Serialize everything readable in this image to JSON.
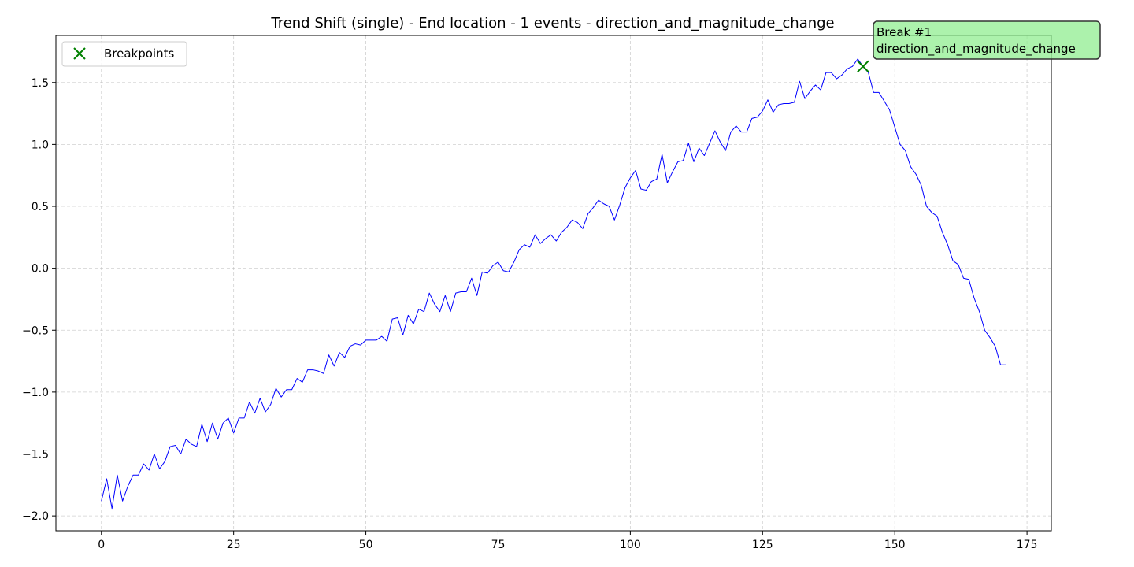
{
  "chart_data": {
    "type": "line",
    "title": "Trend Shift (single) - End location - 1 events - direction_and_magnitude_change",
    "xlabel": "",
    "ylabel": "",
    "xlim": [
      -8.6,
      179.6
    ],
    "ylim": [
      -2.12,
      1.88
    ],
    "xticks": [
      0,
      25,
      50,
      75,
      100,
      125,
      150,
      175
    ],
    "yticks": [
      -2.0,
      -1.5,
      -1.0,
      -0.5,
      0.0,
      0.5,
      1.0,
      1.5
    ],
    "ytick_labels": [
      "−2.0",
      "−1.5",
      "−1.0",
      "−0.5",
      "0.0",
      "0.5",
      "1.0",
      "1.5"
    ],
    "grid": true,
    "legend_position": "top-left",
    "series": [
      {
        "name": "",
        "color": "#0000ff",
        "x": [
          0,
          1,
          2,
          3,
          4,
          5,
          6,
          7,
          8,
          9,
          10,
          11,
          12,
          13,
          14,
          15,
          16,
          17,
          18,
          19,
          20,
          21,
          22,
          23,
          24,
          25,
          26,
          27,
          28,
          29,
          30,
          31,
          32,
          33,
          34,
          35,
          36,
          37,
          38,
          39,
          40,
          41,
          42,
          43,
          44,
          45,
          46,
          47,
          48,
          49,
          50,
          51,
          52,
          53,
          54,
          55,
          56,
          57,
          58,
          59,
          60,
          61,
          62,
          63,
          64,
          65,
          66,
          67,
          68,
          69,
          70,
          71,
          72,
          73,
          74,
          75,
          76,
          77,
          78,
          79,
          80,
          81,
          82,
          83,
          84,
          85,
          86,
          87,
          88,
          89,
          90,
          91,
          92,
          93,
          94,
          95,
          96,
          97,
          98,
          99,
          100,
          101,
          102,
          103,
          104,
          105,
          106,
          107,
          108,
          109,
          110,
          111,
          112,
          113,
          114,
          115,
          116,
          117,
          118,
          119,
          120,
          121,
          122,
          123,
          124,
          125,
          126,
          127,
          128,
          129,
          130,
          131,
          132,
          133,
          134,
          135,
          136,
          137,
          138,
          139,
          140,
          141,
          142,
          143,
          144,
          145,
          146,
          147,
          148,
          149,
          150,
          151,
          152,
          153,
          154,
          155,
          156,
          157,
          158,
          159,
          160,
          161,
          162,
          163,
          164,
          165,
          166,
          167,
          168,
          169,
          170,
          171
        ],
        "values": [
          -1.88,
          -1.7,
          -1.94,
          -1.67,
          -1.88,
          -1.76,
          -1.67,
          -1.67,
          -1.58,
          -1.63,
          -1.5,
          -1.62,
          -1.56,
          -1.44,
          -1.43,
          -1.5,
          -1.38,
          -1.42,
          -1.44,
          -1.26,
          -1.4,
          -1.25,
          -1.38,
          -1.25,
          -1.21,
          -1.33,
          -1.21,
          -1.21,
          -1.08,
          -1.17,
          -1.05,
          -1.16,
          -1.1,
          -0.97,
          -1.04,
          -0.98,
          -0.98,
          -0.89,
          -0.92,
          -0.82,
          -0.82,
          -0.83,
          -0.85,
          -0.7,
          -0.79,
          -0.68,
          -0.72,
          -0.63,
          -0.61,
          -0.62,
          -0.58,
          -0.58,
          -0.58,
          -0.55,
          -0.59,
          -0.41,
          -0.4,
          -0.54,
          -0.38,
          -0.45,
          -0.33,
          -0.35,
          -0.2,
          -0.29,
          -0.35,
          -0.22,
          -0.35,
          -0.2,
          -0.19,
          -0.19,
          -0.08,
          -0.22,
          -0.03,
          -0.04,
          0.02,
          0.05,
          -0.02,
          -0.03,
          0.05,
          0.15,
          0.19,
          0.17,
          0.27,
          0.2,
          0.24,
          0.27,
          0.22,
          0.29,
          0.33,
          0.39,
          0.37,
          0.32,
          0.44,
          0.49,
          0.55,
          0.52,
          0.5,
          0.39,
          0.51,
          0.65,
          0.73,
          0.79,
          0.64,
          0.63,
          0.7,
          0.72,
          0.92,
          0.69,
          0.78,
          0.86,
          0.87,
          1.01,
          0.86,
          0.97,
          0.91,
          1.01,
          1.11,
          1.02,
          0.95,
          1.1,
          1.15,
          1.1,
          1.1,
          1.21,
          1.22,
          1.27,
          1.36,
          1.26,
          1.32,
          1.33,
          1.33,
          1.34,
          1.51,
          1.37,
          1.43,
          1.48,
          1.44,
          1.58,
          1.58,
          1.53,
          1.56,
          1.61,
          1.63,
          1.69,
          1.63,
          1.58,
          1.42,
          1.42,
          1.35,
          1.28,
          1.14,
          1.0,
          0.95,
          0.82,
          0.76,
          0.67,
          0.5,
          0.45,
          0.42,
          0.29,
          0.19,
          0.06,
          0.03,
          -0.08,
          -0.09,
          -0.24,
          -0.35,
          -0.5,
          -0.56,
          -0.63,
          -0.78,
          -0.78
        ]
      }
    ],
    "breakpoints": {
      "legend_label": "Breakpoints",
      "color": "#008000",
      "points": [
        {
          "x": 144,
          "y": 1.63,
          "label_line1": "Break #1",
          "label_line2": "direction_and_magnitude_change"
        }
      ]
    }
  }
}
